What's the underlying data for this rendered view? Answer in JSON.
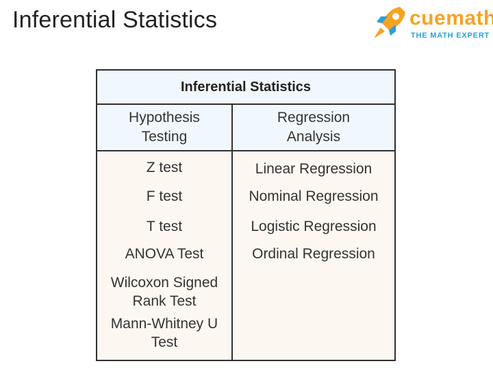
{
  "page": {
    "title": "Inferential Statistics"
  },
  "logo": {
    "brand": "cuemath",
    "tagline": "THE MATH EXPERT",
    "colors": {
      "brand": "#f6a323",
      "tagline": "#2aa1d8",
      "rocket_orange": "#f6a323",
      "rocket_blue": "#2aa1d8"
    }
  },
  "table": {
    "header": "Inferential Statistics",
    "columns": [
      {
        "title": "Hypothesis Testing",
        "items": [
          "Z test",
          "F test",
          "T test",
          "ANOVA Test",
          "Wilcoxon Signed Rank Test",
          "Mann-Whitney U Test"
        ]
      },
      {
        "title": "Regression Analysis",
        "items": [
          "Linear Regression",
          "Nominal Regression",
          "Logistic Regression",
          "Ordinal Regression"
        ]
      }
    ],
    "colors": {
      "header_bg": "#f1f8fd",
      "body_bg": "#fdf7f1",
      "border": "#2f2f2f"
    }
  }
}
